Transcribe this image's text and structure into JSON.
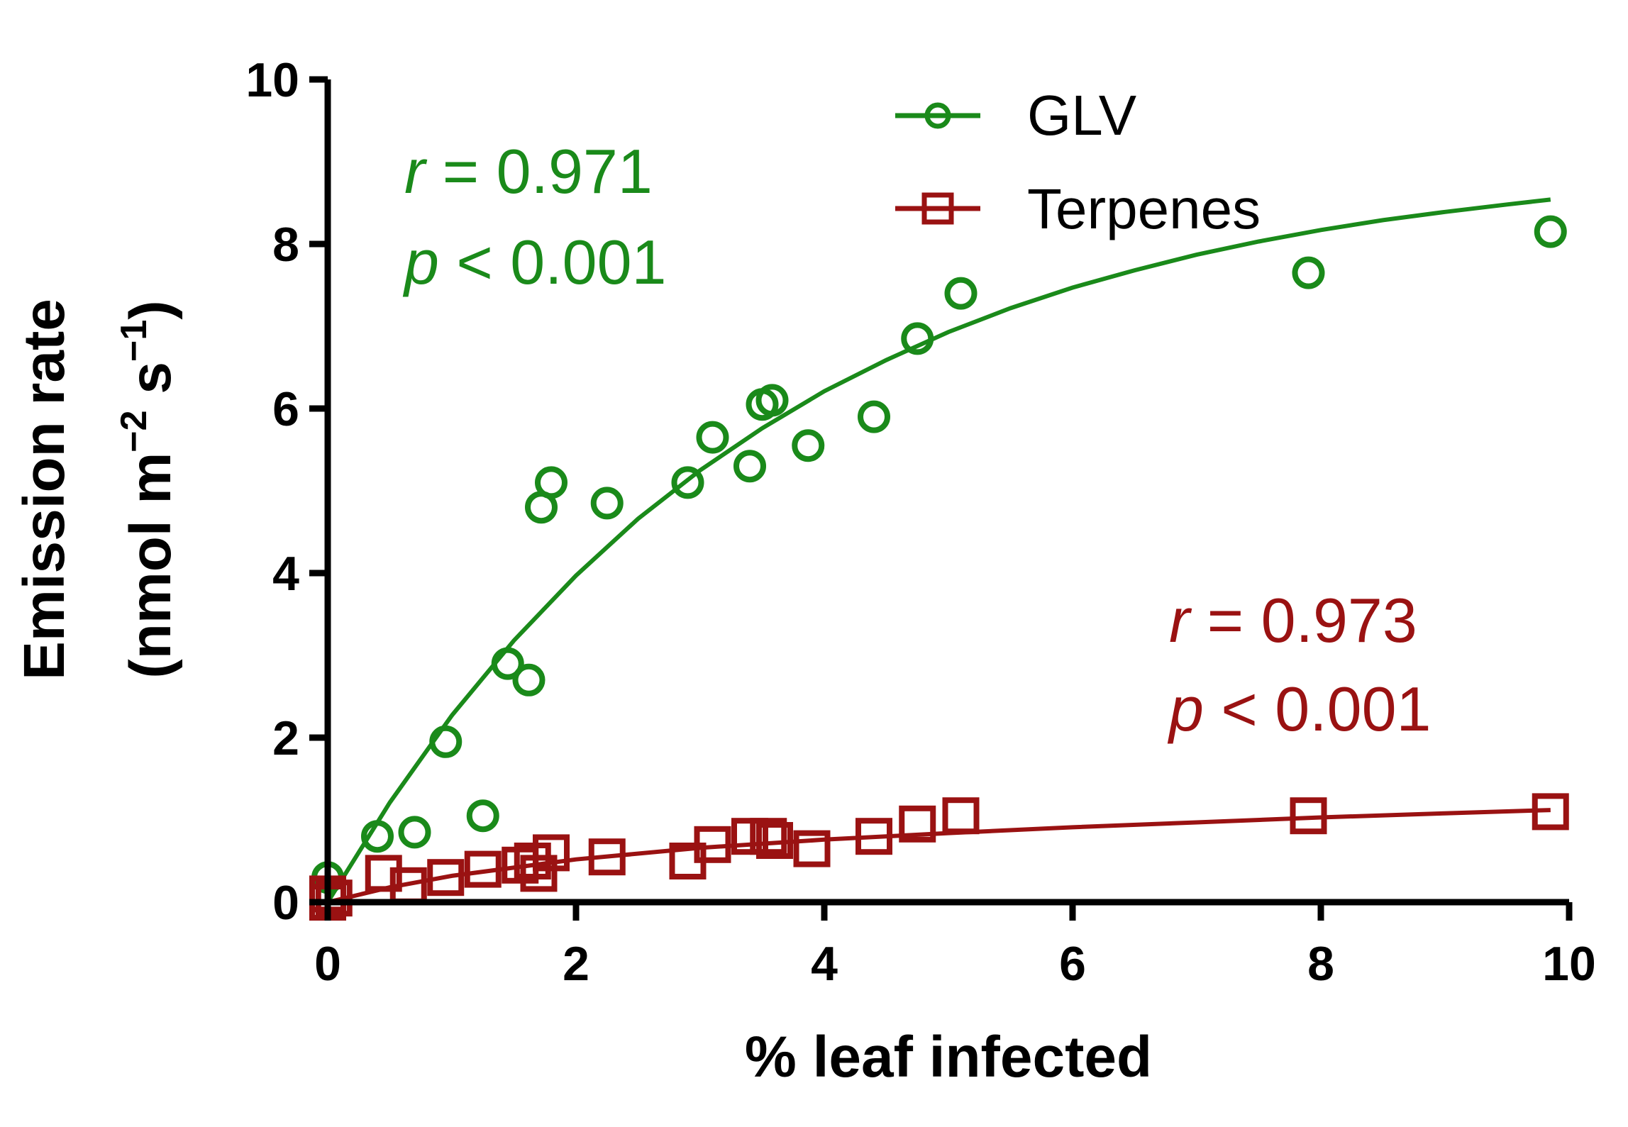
{
  "chart_data": {
    "type": "scatter",
    "xlabel": "% leaf infected",
    "ylabel_line1": "Emission rate",
    "ylabel_line2": "(nmol m",
    "ylabel_sup1": "−2",
    "ylabel_mid": " s",
    "ylabel_sup2": "−1",
    "ylabel_end": ")",
    "xlim": [
      0,
      10
    ],
    "ylim": [
      0,
      10
    ],
    "xticks": [
      "0",
      "2",
      "4",
      "6",
      "8",
      "10"
    ],
    "yticks": [
      "0",
      "2",
      "4",
      "6",
      "8",
      "10"
    ],
    "legend_position": "top-center",
    "grid": false,
    "series": [
      {
        "name": "GLV",
        "marker": "circle",
        "color": "#1a8a1a",
        "points": [
          [
            0.0,
            0.3
          ],
          [
            0.4,
            0.8
          ],
          [
            0.7,
            0.85
          ],
          [
            0.95,
            1.95
          ],
          [
            1.25,
            1.05
          ],
          [
            1.45,
            2.9
          ],
          [
            1.62,
            2.7
          ],
          [
            1.72,
            4.8
          ],
          [
            1.8,
            5.1
          ],
          [
            2.25,
            4.85
          ],
          [
            2.9,
            5.1
          ],
          [
            3.1,
            5.65
          ],
          [
            3.4,
            5.3
          ],
          [
            3.5,
            6.05
          ],
          [
            3.58,
            6.1
          ],
          [
            3.87,
            5.55
          ],
          [
            4.4,
            5.9
          ],
          [
            4.75,
            6.85
          ],
          [
            5.1,
            7.4
          ],
          [
            7.9,
            7.65
          ],
          [
            9.85,
            8.15
          ]
        ],
        "fit_x": [
          0,
          0.5,
          1,
          1.5,
          2,
          2.5,
          3,
          3.5,
          4,
          4.5,
          5,
          5.5,
          6,
          6.5,
          7,
          7.5,
          8,
          8.5,
          9,
          9.5,
          9.85
        ],
        "fit_y": [
          0.0,
          1.21,
          2.27,
          3.18,
          3.97,
          4.66,
          5.25,
          5.76,
          6.21,
          6.59,
          6.93,
          7.22,
          7.47,
          7.68,
          7.87,
          8.03,
          8.17,
          8.29,
          8.39,
          8.48,
          8.54
        ],
        "annotation": {
          "r_symbol": "r",
          "r_text": " = 0.971",
          "p_symbol": "p",
          "p_text": " < 0.001"
        }
      },
      {
        "name": "Terpenes",
        "marker": "square",
        "color": "#9a1212",
        "points": [
          [
            0.0,
            0.0
          ],
          [
            0.0,
            0.1
          ],
          [
            0.05,
            0.05
          ],
          [
            0.45,
            0.35
          ],
          [
            0.65,
            0.2
          ],
          [
            0.95,
            0.3
          ],
          [
            1.25,
            0.4
          ],
          [
            1.55,
            0.45
          ],
          [
            1.65,
            0.5
          ],
          [
            1.7,
            0.35
          ],
          [
            1.8,
            0.6
          ],
          [
            2.25,
            0.55
          ],
          [
            2.9,
            0.5
          ],
          [
            3.1,
            0.7
          ],
          [
            3.4,
            0.8
          ],
          [
            3.55,
            0.8
          ],
          [
            3.6,
            0.75
          ],
          [
            3.9,
            0.65
          ],
          [
            4.4,
            0.8
          ],
          [
            4.75,
            0.95
          ],
          [
            5.1,
            1.05
          ],
          [
            7.9,
            1.05
          ],
          [
            9.85,
            1.1
          ]
        ],
        "fit_x": [
          0,
          0.5,
          1,
          2,
          3,
          4,
          5,
          6,
          7,
          8,
          9,
          9.85
        ],
        "fit_y": [
          0.0,
          0.18,
          0.32,
          0.52,
          0.66,
          0.76,
          0.84,
          0.91,
          0.97,
          1.03,
          1.08,
          1.12
        ],
        "annotation": {
          "r_symbol": "r",
          "r_text": " = 0.973",
          "p_symbol": "p",
          "p_text": " < 0.001"
        }
      }
    ]
  }
}
